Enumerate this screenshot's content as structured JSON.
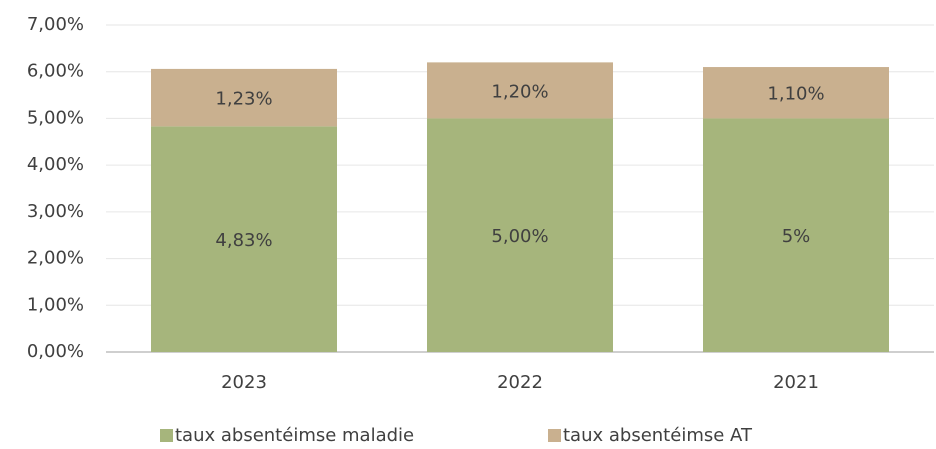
{
  "chart_data": {
    "type": "stacked_bar",
    "categories": [
      "2023",
      "2022",
      "2021"
    ],
    "series": [
      {
        "name": "taux absentéimse maladie",
        "color": "#a6b57c",
        "values": [
          4.83,
          5.0,
          5
        ],
        "value_labels": [
          "4,83%",
          "5,00%",
          "5%"
        ]
      },
      {
        "name": "taux absentéimse AT",
        "color": "#c9b08f",
        "values": [
          1.23,
          1.2,
          1.1
        ],
        "value_labels": [
          "1,23%",
          "1,20%",
          "1,10%"
        ]
      }
    ],
    "ylim": [
      0,
      7
    ],
    "yticks": [
      {
        "value": 0,
        "label": "0,00%"
      },
      {
        "value": 1,
        "label": "1,00%"
      },
      {
        "value": 2,
        "label": "2,00%"
      },
      {
        "value": 3,
        "label": "3,00%"
      },
      {
        "value": 4,
        "label": "4,00%"
      },
      {
        "value": 5,
        "label": "5,00%"
      },
      {
        "value": 6,
        "label": "6,00%"
      },
      {
        "value": 7,
        "label": "7,00%"
      }
    ],
    "grid": true,
    "legend": "bottom"
  }
}
